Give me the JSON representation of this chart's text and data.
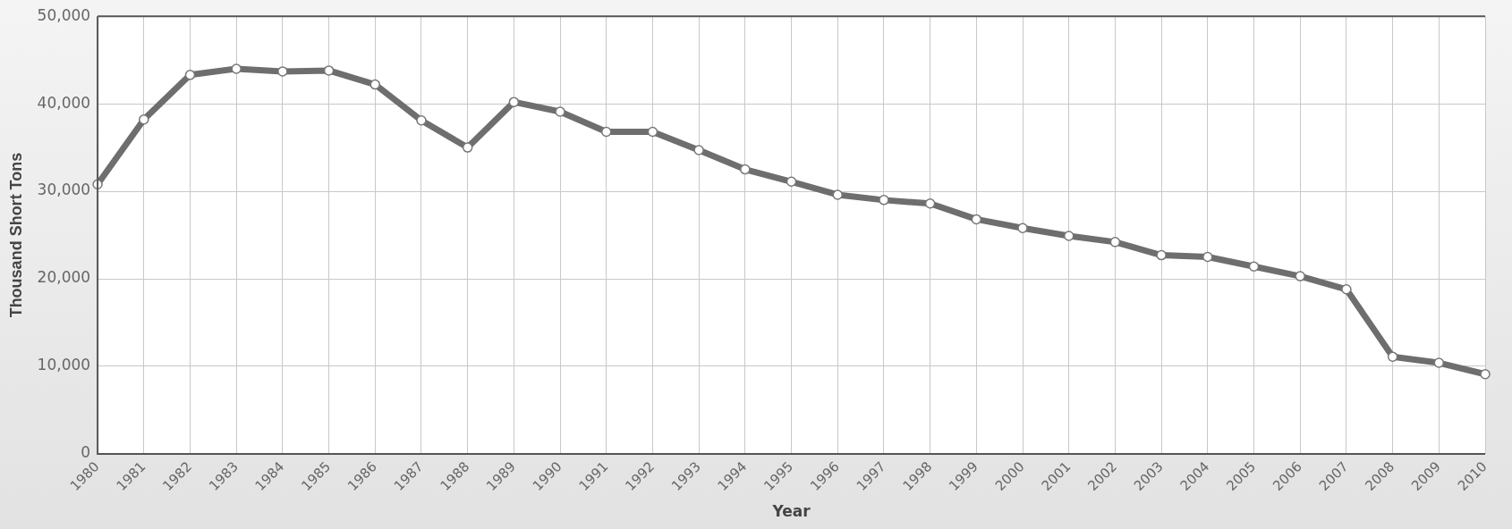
{
  "chart_data": {
    "type": "line",
    "xlabel": "Year",
    "ylabel": "Thousand Short Tons",
    "categories": [
      "1980",
      "1981",
      "1982",
      "1983",
      "1984",
      "1985",
      "1986",
      "1987",
      "1988",
      "1989",
      "1990",
      "1991",
      "1992",
      "1993",
      "1994",
      "1995",
      "1996",
      "1997",
      "1998",
      "1999",
      "2000",
      "2001",
      "2002",
      "2003",
      "2004",
      "2005",
      "2006",
      "2007",
      "2008",
      "2009",
      "2010"
    ],
    "series": [
      {
        "color": "#6e6e6e",
        "values": [
          30800,
          38200,
          43300,
          44000,
          43700,
          43800,
          42200,
          38100,
          35000,
          40200,
          39100,
          36800,
          36800,
          34700,
          32500,
          31100,
          29600,
          29000,
          28600,
          26800,
          25800,
          24900,
          24200,
          22700,
          22500,
          21400,
          20300,
          18800,
          11100,
          10400,
          9100
        ]
      }
    ],
    "ylim": [
      0,
      50000
    ],
    "yticks": [
      {
        "value": 0,
        "label": "0"
      },
      {
        "value": 10000,
        "label": "10,000"
      },
      {
        "value": 20000,
        "label": "20,000"
      },
      {
        "value": 30000,
        "label": "30,000"
      },
      {
        "value": 40000,
        "label": "40,000"
      },
      {
        "value": 50000,
        "label": "50,000"
      }
    ],
    "grid": true,
    "legend": false,
    "marker": "circle",
    "line_style": "solid"
  }
}
